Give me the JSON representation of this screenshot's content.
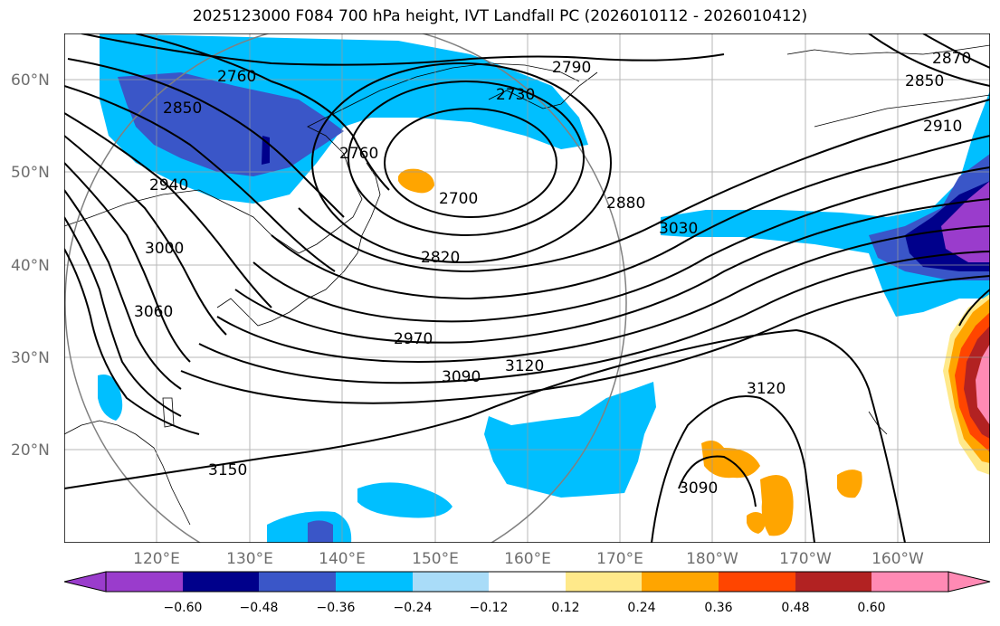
{
  "title": "2025123000 F084 700 hPa height, IVT Landfall PC (2026010112 - 2026010412)",
  "lat_labels": [
    "60°N",
    "50°N",
    "40°N",
    "30°N",
    "20°N"
  ],
  "lon_labels": [
    "120°E",
    "130°E",
    "140°E",
    "150°E",
    "160°E",
    "170°E",
    "180°W",
    "170°W",
    "160°W"
  ],
  "contour_labels": [
    "2760",
    "2790",
    "2730",
    "2850",
    "2870",
    "2850",
    "2910",
    "2760",
    "2700",
    "2940",
    "2880",
    "3030",
    "3000",
    "2820",
    "3060",
    "2970",
    "3090",
    "3120",
    "3120",
    "3090",
    "3150"
  ],
  "colorbar": {
    "tick_labels": [
      "−0.60",
      "−0.48",
      "−0.36",
      "−0.24",
      "−0.12",
      "0.12",
      "0.24",
      "0.36",
      "0.48",
      "0.60"
    ],
    "colors": [
      "#9a3ccc",
      "#00008b",
      "#3a56c8",
      "#00bfff",
      "#a9dcf8",
      "#ffffff",
      "#ffe98a",
      "#ffa500",
      "#ff4500",
      "#b22222",
      "#ff8ab4"
    ]
  }
}
